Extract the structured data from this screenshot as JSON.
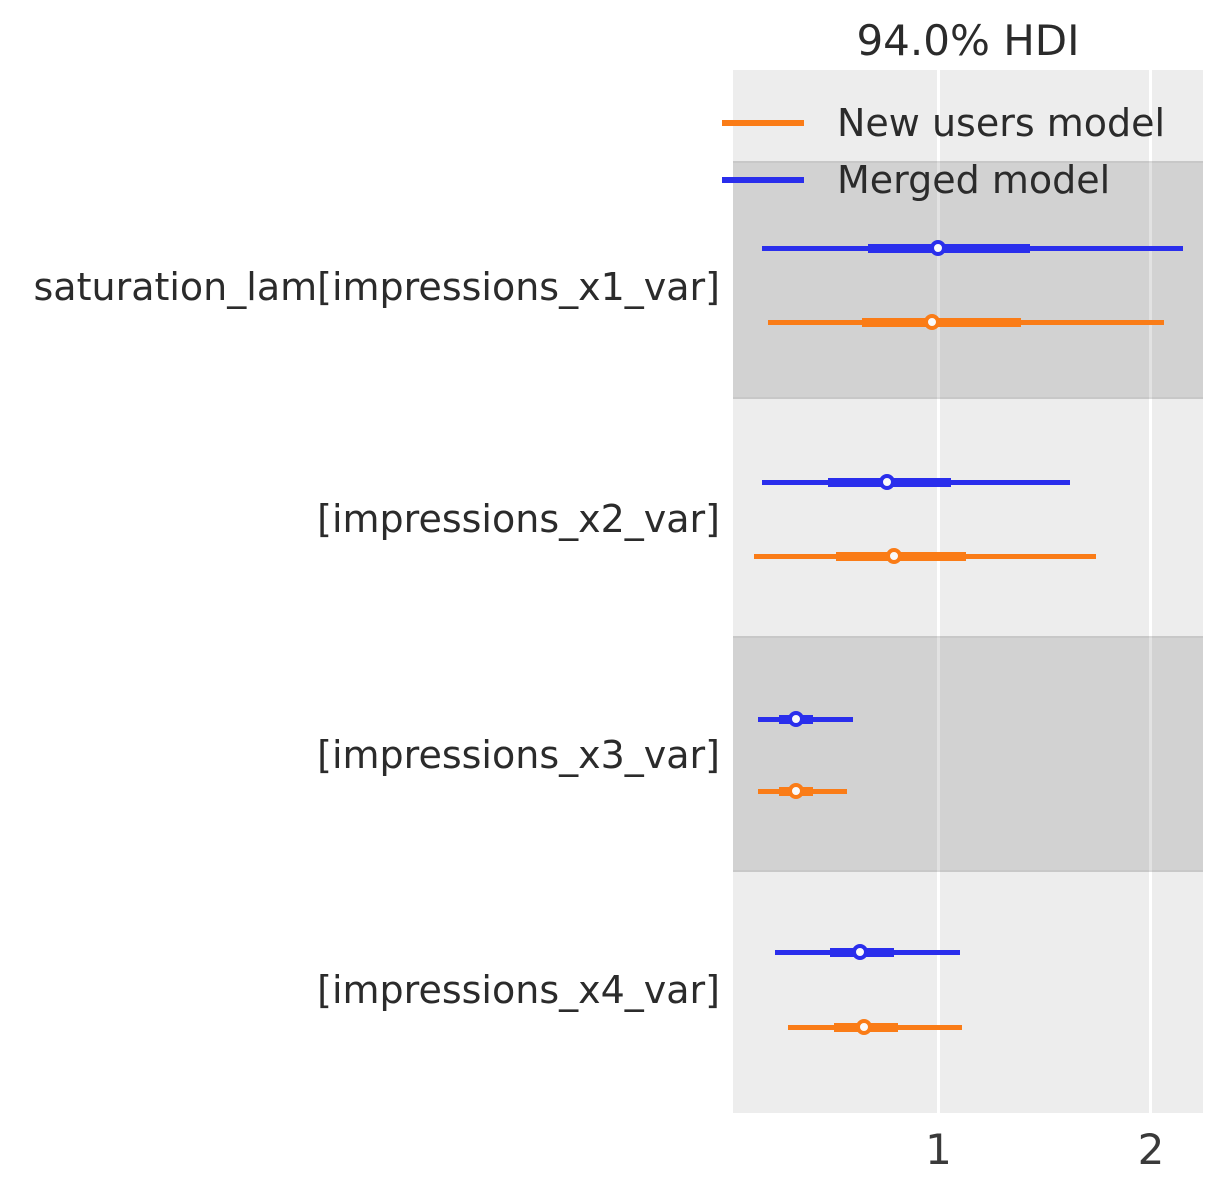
{
  "chart_data": {
    "type": "forest",
    "title": "94.0% HDI",
    "hdi_probability": "94.0%",
    "legend": [
      {
        "name": "New users model",
        "color": "#fa7c17"
      },
      {
        "name": "Merged model",
        "color": "#2a2eec"
      }
    ],
    "colors": {
      "orange": "#fa7c17",
      "blue": "#2a2eec"
    },
    "band_colors": {
      "light": "#ededed",
      "dark": "#d4d4d4"
    },
    "xlim": [
      0.033,
      2.245
    ],
    "xticks": [
      1,
      2
    ],
    "xtick_labels": [
      "1",
      "2"
    ],
    "grid": true,
    "legend_position": "upper left inside plot",
    "rows": [
      {
        "label": "saturation_lam[impressions_x1_var]",
        "intervals": [
          {
            "model": "Merged model",
            "color": "#2a2eec",
            "hdi": [
              0.17,
              2.15
            ],
            "iqr": [
              0.67,
              1.43
            ],
            "point": 1.0
          },
          {
            "model": "New users model",
            "color": "#fa7c17",
            "hdi": [
              0.2,
              2.06
            ],
            "iqr": [
              0.64,
              1.39
            ],
            "point": 0.97
          }
        ]
      },
      {
        "label": "[impressions_x2_var]",
        "intervals": [
          {
            "model": "Merged model",
            "color": "#2a2eec",
            "hdi": [
              0.17,
              1.62
            ],
            "iqr": [
              0.48,
              1.06
            ],
            "point": 0.76
          },
          {
            "model": "New users model",
            "color": "#fa7c17",
            "hdi": [
              0.13,
              1.74
            ],
            "iqr": [
              0.52,
              1.13
            ],
            "point": 0.79
          }
        ]
      },
      {
        "label": "[impressions_x3_var]",
        "intervals": [
          {
            "model": "Merged model",
            "color": "#2a2eec",
            "hdi": [
              0.15,
              0.6
            ],
            "iqr": [
              0.25,
              0.41
            ],
            "point": 0.33
          },
          {
            "model": "New users model",
            "color": "#fa7c17",
            "hdi": [
              0.15,
              0.57
            ],
            "iqr": [
              0.25,
              0.41
            ],
            "point": 0.33
          }
        ]
      },
      {
        "label": "[impressions_x4_var]",
        "intervals": [
          {
            "model": "Merged model",
            "color": "#2a2eec",
            "hdi": [
              0.23,
              1.1
            ],
            "iqr": [
              0.49,
              0.79
            ],
            "point": 0.63
          },
          {
            "model": "New users model",
            "color": "#fa7c17",
            "hdi": [
              0.29,
              1.11
            ],
            "iqr": [
              0.51,
              0.81
            ],
            "point": 0.65
          }
        ]
      }
    ]
  }
}
